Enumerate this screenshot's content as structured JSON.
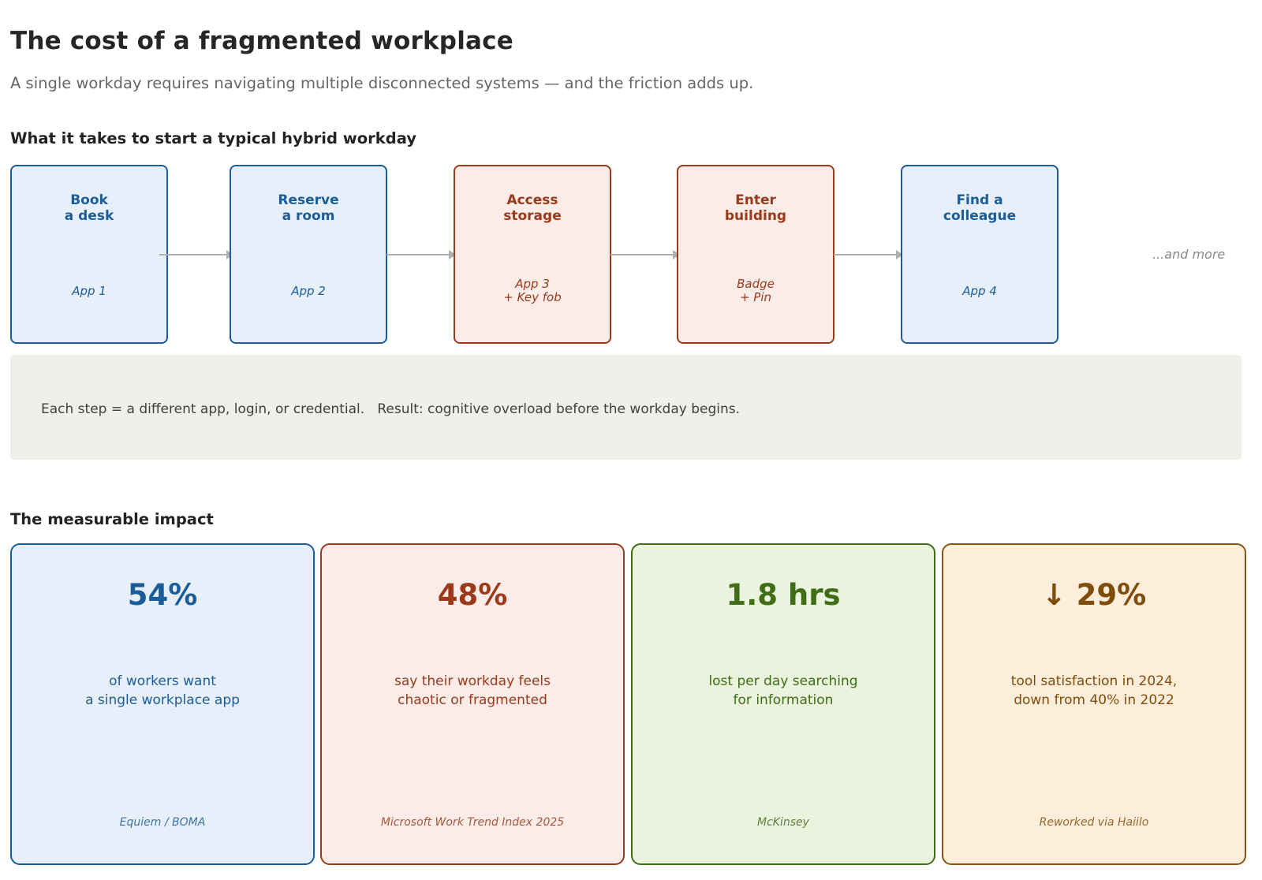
{
  "header": {
    "title": "The cost of a fragmented workplace",
    "subtitle": "A single workday requires navigating multiple disconnected systems — and the friction adds up."
  },
  "flow": {
    "heading": "What it takes to start a typical hybrid workday",
    "steps": [
      {
        "title": "Book\na desk",
        "app": "App 1",
        "tone": "blue"
      },
      {
        "title": "Reserve\na room",
        "app": "App 2",
        "tone": "blue"
      },
      {
        "title": "Access\nstorage",
        "app": "App 3\n+ Key fob",
        "tone": "red"
      },
      {
        "title": "Enter\nbuilding",
        "app": "Badge\n+ Pin",
        "tone": "red"
      },
      {
        "title": "Find a\ncolleague",
        "app": "App 4",
        "tone": "blue"
      }
    ],
    "and_more": "...and more",
    "note": "Each step = a different app, login, or credential.   Result: cognitive overload before the workday begins."
  },
  "impact": {
    "heading": "The measurable impact",
    "cards": [
      {
        "stat": "54%",
        "desc": "of workers want\na single workplace app",
        "source": "Equiem / BOMA",
        "tone": "blue"
      },
      {
        "stat": "48%",
        "desc": "say their workday feels\nchaotic or fragmented",
        "source": "Microsoft Work Trend Index 2025",
        "tone": "red"
      },
      {
        "stat": "1.8 hrs",
        "desc": "lost per day searching\nfor information",
        "source": "McKinsey",
        "tone": "green"
      },
      {
        "stat": "↓ 29%",
        "desc": "tool satisfaction in 2024,\ndown from 40% in 2022",
        "source": "Reworked via Haiilo",
        "tone": "orange"
      }
    ]
  },
  "colors": {
    "blue": "#1a5d99",
    "red": "#9a3a1b",
    "green": "#3f6e16",
    "orange": "#7e4d0a",
    "note_bg": "#f1efea"
  }
}
